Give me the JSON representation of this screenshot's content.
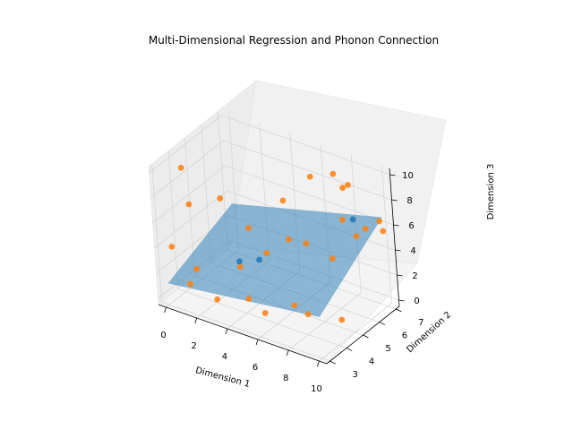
{
  "chart_data": {
    "type": "scatter",
    "title": "Multi-Dimensional Regression and Phonon Connection",
    "xlabel": "Dimension 1",
    "ylabel": "Dimension 2",
    "zlabel": "Dimension 3",
    "xlim": [
      -0.5,
      10.5
    ],
    "ylim": [
      2.8,
      7.2
    ],
    "zlim": [
      -0.5,
      10.5
    ],
    "xticks": [
      "0",
      "2",
      "4",
      "6",
      "8",
      "10"
    ],
    "yticks": [
      "3",
      "4",
      "5",
      "6",
      "7"
    ],
    "zticks": [
      "0",
      "2",
      "4",
      "6",
      "8",
      "10"
    ],
    "grid": true,
    "colors": {
      "points": "#ff7f0e",
      "highlight": "#1f77b4",
      "surface": "#1f77b4"
    },
    "surface": {
      "x": [
        0,
        10
      ],
      "y": [
        3,
        7
      ],
      "z": [
        [
          1.2,
          3.4
        ],
        [
          2.8,
          6.6
        ]
      ]
    },
    "series": [
      {
        "color": "#ff7f0e",
        "points": [
          [
            0.5,
            3.8,
            9.8
          ],
          [
            0.2,
            3.2,
            4.0
          ],
          [
            1.2,
            3.5,
            7.5
          ],
          [
            2.5,
            4.2,
            7.8
          ],
          [
            2.0,
            3.0,
            3.2
          ],
          [
            1.5,
            3.0,
            1.8
          ],
          [
            3.0,
            3.2,
            1.0
          ],
          [
            4.0,
            3.8,
            3.4
          ],
          [
            5.0,
            4.5,
            4.2
          ],
          [
            4.5,
            4.0,
            6.5
          ],
          [
            6.0,
            4.8,
            8.5
          ],
          [
            7.0,
            5.6,
            10.0
          ],
          [
            6.2,
            4.8,
            5.5
          ],
          [
            7.0,
            5.1,
            5.2
          ],
          [
            8.5,
            6.0,
            6.8
          ],
          [
            9.0,
            6.3,
            5.4
          ],
          [
            8.8,
            6.2,
            9.5
          ],
          [
            8.2,
            6.4,
            8.8
          ],
          [
            9.3,
            6.6,
            5.8
          ],
          [
            9.8,
            7.0,
            6.2
          ],
          [
            10.0,
            7.0,
            5.5
          ],
          [
            7.2,
            4.0,
            1.5
          ],
          [
            5.0,
            3.3,
            1.8
          ],
          [
            5.8,
            3.5,
            0.8
          ],
          [
            7.5,
            4.5,
            0.4
          ],
          [
            9.5,
            4.7,
            0.6
          ],
          [
            7.5,
            6.5,
            9.5
          ],
          [
            8.0,
            5.7,
            3.8
          ]
        ]
      },
      {
        "color": "#1f77b4",
        "points": [
          [
            3.5,
            4.2,
            3.2
          ],
          [
            4.6,
            4.4,
            3.6
          ],
          [
            8.5,
            6.6,
            6.2
          ]
        ]
      }
    ]
  }
}
